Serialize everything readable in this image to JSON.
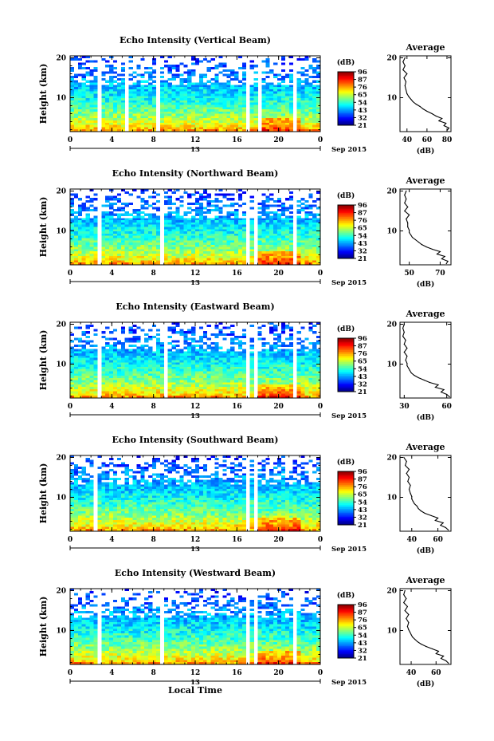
{
  "chart_data": [
    {
      "type": "heatmap",
      "title": "Echo Intensity (Vertical Beam)",
      "ylabel": "Height (km)",
      "x_ticks": [
        "0",
        "4",
        "8",
        "12",
        "16",
        "20",
        "0"
      ],
      "y_ticks": [
        "10",
        "20"
      ],
      "xlim": [
        0,
        24
      ],
      "ylim": [
        1.5,
        20.5
      ],
      "date_day": "13",
      "date_label": "Sep 2015",
      "colorbar": {
        "unit": "(dB)",
        "ticks": [
          "96",
          "87",
          "76",
          "65",
          "54",
          "43",
          "32",
          "21"
        ]
      },
      "gaps": [
        [
          2.6,
          2.9
        ],
        [
          5.1,
          5.5
        ],
        [
          8.3,
          8.7
        ],
        [
          16.8,
          17.2
        ],
        [
          17.9,
          18.4
        ],
        [
          21.4,
          21.8
        ]
      ],
      "profile": {
        "title": "Average",
        "xlabel": "(dB)",
        "x_ticks": [
          "40",
          "60",
          "80"
        ],
        "xlim": [
          33,
          84
        ],
        "y": [
          1.8,
          2.4,
          3.0,
          3.6,
          4.2,
          4.8,
          5.4,
          6.0,
          6.6,
          7.2,
          7.8,
          8.4,
          9.0,
          9.6,
          10.2,
          11.0,
          12.0,
          13.0,
          14.0,
          15.0,
          16.0,
          17.0,
          18.0,
          19.0,
          20.0
        ],
        "x": [
          80,
          82,
          77,
          79,
          72,
          75,
          69,
          65,
          60,
          56,
          53,
          49,
          46,
          44,
          42,
          40,
          39,
          38,
          39,
          37,
          40,
          36,
          38,
          36,
          38
        ]
      }
    },
    {
      "type": "heatmap",
      "title": "Echo Intensity (Northward Beam)",
      "ylabel": "Height (km)",
      "x_ticks": [
        "0",
        "4",
        "8",
        "12",
        "16",
        "20",
        "0"
      ],
      "y_ticks": [
        "10",
        "20"
      ],
      "xlim": [
        0,
        24
      ],
      "ylim": [
        1.5,
        20.5
      ],
      "date_day": "13",
      "date_label": "Sep 2015",
      "colorbar": {
        "unit": "(dB)",
        "ticks": [
          "96",
          "87",
          "76",
          "65",
          "54",
          "43",
          "32",
          "21"
        ]
      },
      "gaps": [
        [
          2.6,
          2.9
        ],
        [
          5.1,
          5.4
        ],
        [
          8.8,
          9.1
        ],
        [
          16.8,
          17.1
        ],
        [
          17.6,
          18.0
        ],
        [
          21.4,
          21.7
        ]
      ],
      "profile": {
        "title": "Average",
        "xlabel": "(dB)",
        "x_ticks": [
          "50",
          "70"
        ],
        "xlim": [
          44,
          77
        ],
        "y": [
          1.8,
          2.4,
          3.0,
          3.6,
          4.2,
          4.8,
          5.4,
          6.0,
          6.6,
          7.2,
          7.8,
          8.4,
          9.0,
          9.6,
          10.2,
          11.0,
          12.0,
          13.0,
          14.0,
          15.0,
          16.0,
          17.0,
          18.0,
          19.0,
          20.0
        ],
        "x": [
          74,
          75,
          71,
          73,
          68,
          70,
          65,
          61,
          58,
          56,
          54,
          52,
          51,
          50,
          50,
          49,
          49,
          48,
          50,
          47,
          49,
          47,
          48,
          47,
          48
        ]
      }
    },
    {
      "type": "heatmap",
      "title": "Echo Intensity (Eastward Beam)",
      "ylabel": "Height (km)",
      "x_ticks": [
        "0",
        "4",
        "8",
        "12",
        "16",
        "20",
        "0"
      ],
      "y_ticks": [
        "10",
        "20"
      ],
      "xlim": [
        0,
        24
      ],
      "ylim": [
        1.5,
        20.5
      ],
      "date_day": "13",
      "date_label": "Sep 2015",
      "colorbar": {
        "unit": "(dB)",
        "ticks": [
          "96",
          "87",
          "76",
          "65",
          "54",
          "43",
          "32",
          "21"
        ]
      },
      "gaps": [
        [
          2.6,
          2.9
        ],
        [
          5.1,
          5.4
        ],
        [
          8.9,
          9.2
        ],
        [
          16.8,
          17.1
        ],
        [
          17.6,
          18.0
        ],
        [
          21.4,
          21.7
        ]
      ],
      "profile": {
        "title": "Average",
        "xlabel": "(dB)",
        "x_ticks": [
          "30",
          "60"
        ],
        "xlim": [
          27,
          63
        ],
        "y": [
          1.8,
          2.4,
          3.0,
          3.6,
          4.2,
          4.8,
          5.4,
          6.0,
          6.6,
          7.2,
          7.8,
          8.4,
          9.0,
          9.6,
          10.2,
          11.0,
          12.0,
          13.0,
          14.0,
          15.0,
          16.0,
          17.0,
          18.0,
          19.0,
          20.0
        ],
        "x": [
          62,
          60,
          56,
          58,
          52,
          54,
          48,
          44,
          40,
          37,
          35,
          34,
          33,
          32,
          32,
          31,
          32,
          30,
          32,
          30,
          31,
          29,
          30,
          29,
          30
        ]
      }
    },
    {
      "type": "heatmap",
      "title": "Echo Intensity (Southward Beam)",
      "ylabel": "Height (km)",
      "x_ticks": [
        "0",
        "4",
        "8",
        "12",
        "16",
        "20",
        "0"
      ],
      "y_ticks": [
        "10",
        "20"
      ],
      "xlim": [
        0,
        24
      ],
      "ylim": [
        1.5,
        20.5
      ],
      "date_day": "13",
      "date_label": "Sep 2015",
      "colorbar": {
        "unit": "(dB)",
        "ticks": [
          "96",
          "87",
          "76",
          "65",
          "54",
          "43",
          "32",
          "21"
        ]
      },
      "gaps": [
        [
          2.2,
          2.6
        ],
        [
          5.1,
          5.3
        ],
        [
          16.8,
          17.1
        ],
        [
          17.6,
          18.0
        ]
      ],
      "profile": {
        "title": "Average",
        "xlabel": "(dB)",
        "x_ticks": [
          "40",
          "60"
        ],
        "xlim": [
          31,
          70
        ],
        "y": [
          1.8,
          2.4,
          3.0,
          3.6,
          4.2,
          4.8,
          5.4,
          6.0,
          6.6,
          7.2,
          7.8,
          8.4,
          9.0,
          9.6,
          10.2,
          11.0,
          12.0,
          13.0,
          14.0,
          15.0,
          16.0,
          17.0,
          18.0,
          19.0,
          20.0
        ],
        "x": [
          68,
          66,
          62,
          64,
          58,
          60,
          55,
          50,
          47,
          45,
          44,
          42,
          41,
          40,
          40,
          39,
          38,
          39,
          37,
          38,
          36,
          38,
          35,
          36,
          34
        ]
      }
    },
    {
      "type": "heatmap",
      "title": "Echo Intensity (Westward Beam)",
      "ylabel": "Height (km)",
      "x_ticks": [
        "0",
        "4",
        "8",
        "12",
        "16",
        "20",
        "0"
      ],
      "y_ticks": [
        "10",
        "20"
      ],
      "xlim": [
        0,
        24
      ],
      "ylim": [
        1.5,
        20.5
      ],
      "date_day": "13",
      "date_label": "Sep 2015",
      "xlabel": "Local Time",
      "colorbar": {
        "unit": "(dB)",
        "ticks": [
          "96",
          "87",
          "76",
          "65",
          "54",
          "43",
          "32",
          "21"
        ]
      },
      "gaps": [
        [
          2.6,
          2.9
        ],
        [
          5.1,
          5.4
        ],
        [
          8.7,
          9.1
        ],
        [
          16.8,
          17.1
        ],
        [
          17.6,
          18.0
        ],
        [
          21.4,
          21.7
        ]
      ],
      "profile": {
        "title": "Average",
        "xlabel": "(dB)",
        "x_ticks": [
          "40",
          "60"
        ],
        "xlim": [
          31,
          72
        ],
        "y": [
          1.8,
          2.4,
          3.0,
          3.6,
          4.2,
          4.8,
          5.4,
          6.0,
          6.6,
          7.2,
          7.8,
          8.4,
          9.0,
          9.6,
          10.2,
          11.0,
          12.0,
          13.0,
          14.0,
          15.0,
          16.0,
          17.0,
          18.0,
          19.0,
          20.0
        ],
        "x": [
          70,
          68,
          64,
          66,
          60,
          62,
          57,
          52,
          48,
          45,
          43,
          41,
          40,
          39,
          38,
          37,
          38,
          36,
          38,
          35,
          37,
          34,
          36,
          34,
          35
        ]
      }
    }
  ]
}
